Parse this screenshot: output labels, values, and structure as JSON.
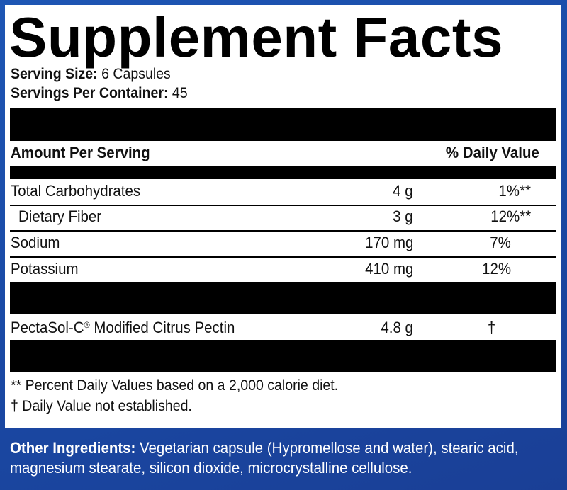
{
  "title": "Supplement Facts",
  "serving_size_label": "Serving Size:",
  "serving_size_value": "6 Capsules",
  "servings_per_container_label": "Servings Per Container:",
  "servings_per_container_value": "45",
  "header": {
    "amount_per_serving": "Amount Per Serving",
    "daily_value": "% Daily Value"
  },
  "nutrients": [
    {
      "name": "Total Carbohydrates",
      "amount": "4 g",
      "dv": "1%**"
    },
    {
      "name": "Dietary Fiber",
      "amount": "3 g",
      "dv": "12%**"
    },
    {
      "name": "Sodium",
      "amount": "170 mg",
      "dv": "7%"
    },
    {
      "name": "Potassium",
      "amount": "410 mg",
      "dv": "12%"
    }
  ],
  "pectin": {
    "name": "PectaSol-C",
    "reg": "®",
    "name_rest": " Modified Citrus Pectin",
    "amount": "4.8 g",
    "dv": "†"
  },
  "footnotes": {
    "percent_dv": "** Percent Daily Values based on a 2,000 calorie diet.",
    "not_established": "† Daily Value not established."
  },
  "other_ingredients": {
    "label": "Other Ingredients:",
    "text": " Vegetarian capsule (Hypromellose and water), stearic acid, magnesium stearate, silicon dioxide, microcrystalline cellulose."
  },
  "colors": {
    "background_blue": "#1e56b4",
    "panel": "#ffffff",
    "bars": "#000000"
  }
}
